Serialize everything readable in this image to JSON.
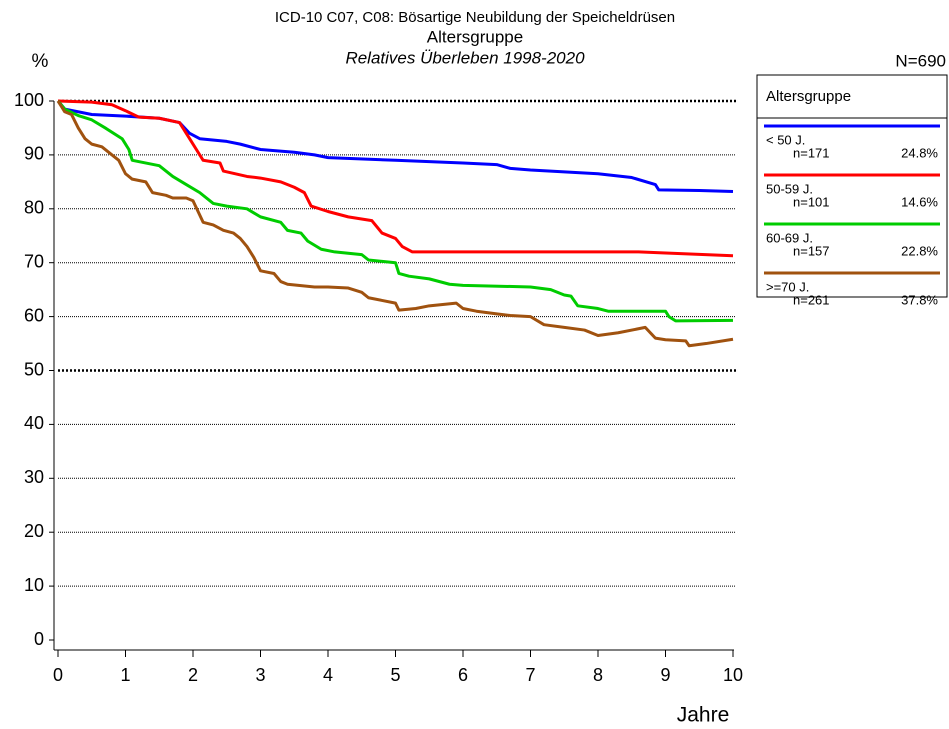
{
  "chart_data": {
    "type": "line",
    "title": "ICD-10 C07, C08: Bösartige Neubildung der Speicheldrüsen",
    "subtitle": "Altersgruppe",
    "subtitle2": "Relatives Überleben 1998-2020",
    "y_label": "%",
    "x_label": "Jahre",
    "total_label": "N=690",
    "legend_title": "Altersgruppe",
    "xlim": [
      0,
      10
    ],
    "ylim": [
      0,
      100
    ],
    "xticks": [
      0,
      1,
      2,
      3,
      4,
      5,
      6,
      7,
      8,
      9,
      10
    ],
    "yticks": [
      0,
      10,
      20,
      30,
      40,
      50,
      60,
      70,
      80,
      90,
      100
    ],
    "grid": true,
    "series": [
      {
        "name": "< 50 J.",
        "n_label": "n=171",
        "share_label": "24.8%",
        "color": "#0000ff",
        "x": [
          0,
          0.1,
          0.5,
          1,
          1.5,
          1.8,
          1.95,
          2.1,
          2.5,
          2.7,
          3,
          3.5,
          3.8,
          4,
          5,
          6,
          6.5,
          6.7,
          7,
          8,
          8.5,
          8.85,
          8.9,
          9.5,
          10
        ],
        "values": [
          100,
          98.5,
          97.5,
          97.2,
          96.8,
          96,
          94,
          93,
          92.5,
          92,
          91,
          90.5,
          90,
          89.5,
          89,
          88.5,
          88.2,
          87.5,
          87.2,
          86.5,
          85.8,
          84.5,
          83.5,
          83.4,
          83.2
        ]
      },
      {
        "name": "50-59 J.",
        "n_label": "n=101",
        "share_label": "14.6%",
        "color": "#ff0000",
        "x": [
          0,
          0.5,
          0.8,
          1,
          1.2,
          1.5,
          1.8,
          1.95,
          2.05,
          2.15,
          2.4,
          2.45,
          2.8,
          3,
          3.3,
          3.5,
          3.65,
          3.75,
          4,
          4.3,
          4.65,
          4.8,
          5,
          5.1,
          5.25,
          6,
          7,
          8,
          8.6,
          9,
          10
        ],
        "values": [
          100,
          99.8,
          99.3,
          98.2,
          97,
          96.8,
          96,
          93,
          91,
          89,
          88.5,
          87,
          86,
          85.7,
          85,
          84,
          83,
          80.5,
          79.5,
          78.5,
          77.8,
          75.5,
          74.5,
          73,
          72,
          72,
          72,
          72,
          72,
          71.8,
          71.3
        ]
      },
      {
        "name": "60-69 J.",
        "n_label": "n=157",
        "share_label": "22.8%",
        "color": "#00cc00",
        "x": [
          0,
          0.1,
          0.3,
          0.5,
          0.7,
          0.95,
          1.05,
          1.1,
          1.5,
          1.7,
          1.9,
          2.1,
          2.3,
          2.5,
          2.8,
          3,
          3.3,
          3.4,
          3.6,
          3.7,
          3.9,
          4.1,
          4.5,
          4.6,
          5,
          5.05,
          5.2,
          5.5,
          5.8,
          6,
          7,
          7.3,
          7.5,
          7.6,
          7.7,
          8,
          8.15,
          9,
          9.05,
          9.15,
          10
        ],
        "values": [
          100,
          98.5,
          97.3,
          96.5,
          95,
          93,
          91,
          89,
          88,
          86,
          84.5,
          83,
          81,
          80.5,
          80,
          78.5,
          77.5,
          76,
          75.5,
          74,
          72.5,
          72,
          71.5,
          70.5,
          70,
          68,
          67.5,
          67,
          66,
          65.8,
          65.5,
          65,
          64,
          63.8,
          62,
          61.5,
          61,
          61,
          60,
          59.2,
          59.3
        ]
      },
      {
        "name": ">=70 J.",
        "n_label": "n=261",
        "share_label": "37.8%",
        "color": "#a0520f",
        "x": [
          0,
          0.1,
          0.2,
          0.3,
          0.4,
          0.5,
          0.65,
          0.8,
          0.9,
          1,
          1.1,
          1.3,
          1.4,
          1.6,
          1.7,
          1.9,
          2,
          2.15,
          2.3,
          2.45,
          2.6,
          2.7,
          2.8,
          2.9,
          3,
          3.2,
          3.3,
          3.4,
          3.8,
          4,
          4.3,
          4.5,
          4.6,
          4.8,
          5,
          5.05,
          5.3,
          5.5,
          5.9,
          6,
          6.2,
          6.5,
          6.7,
          7,
          7.2,
          7.5,
          7.8,
          8,
          8.3,
          8.7,
          8.85,
          9,
          9.3,
          9.35,
          9.6,
          10
        ],
        "values": [
          100,
          98,
          97.5,
          95,
          93,
          92,
          91.5,
          90,
          89,
          86.5,
          85.5,
          85,
          83,
          82.5,
          82,
          82,
          81.5,
          77.5,
          77,
          76,
          75.5,
          74.5,
          73,
          71,
          68.5,
          68,
          66.5,
          66,
          65.5,
          65.5,
          65.3,
          64.5,
          63.5,
          63,
          62.5,
          61.2,
          61.5,
          62,
          62.5,
          61.5,
          61,
          60.5,
          60.2,
          60,
          58.5,
          58,
          57.5,
          56.5,
          57,
          58,
          56,
          55.7,
          55.5,
          54.6,
          55,
          55.8
        ]
      }
    ]
  }
}
